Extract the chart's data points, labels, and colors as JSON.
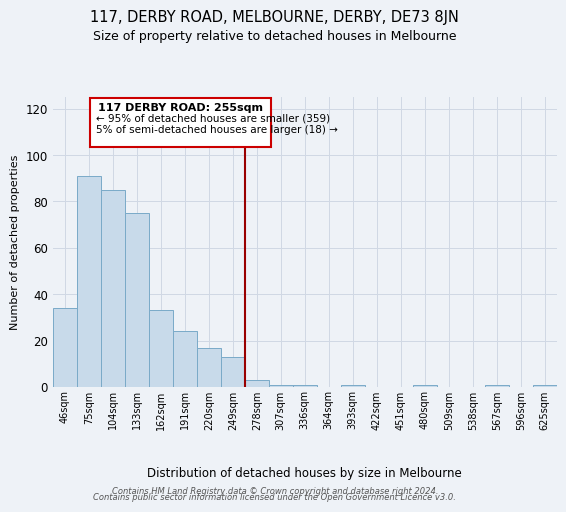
{
  "title": "117, DERBY ROAD, MELBOURNE, DERBY, DE73 8JN",
  "subtitle": "Size of property relative to detached houses in Melbourne",
  "xlabel": "Distribution of detached houses by size in Melbourne",
  "ylabel": "Number of detached properties",
  "bar_labels": [
    "46sqm",
    "75sqm",
    "104sqm",
    "133sqm",
    "162sqm",
    "191sqm",
    "220sqm",
    "249sqm",
    "278sqm",
    "307sqm",
    "336sqm",
    "364sqm",
    "393sqm",
    "422sqm",
    "451sqm",
    "480sqm",
    "509sqm",
    "538sqm",
    "567sqm",
    "596sqm",
    "625sqm"
  ],
  "bar_values": [
    34,
    91,
    85,
    75,
    33,
    24,
    17,
    13,
    3,
    1,
    1,
    0,
    1,
    0,
    0,
    1,
    0,
    0,
    1,
    0,
    1
  ],
  "bar_color": "#c8daea",
  "bar_edge_color": "#7aaac8",
  "vline_color": "#990000",
  "annotation_title": "117 DERBY ROAD: 255sqm",
  "annotation_line1": "← 95% of detached houses are smaller (359)",
  "annotation_line2": "5% of semi-detached houses are larger (18) →",
  "annotation_box_color": "#ffffff",
  "annotation_box_edge": "#cc0000",
  "ylim": [
    0,
    125
  ],
  "yticks": [
    0,
    20,
    40,
    60,
    80,
    100,
    120
  ],
  "footer1": "Contains HM Land Registry data © Crown copyright and database right 2024.",
  "footer2": "Contains public sector information licensed under the Open Government Licence v3.0.",
  "bg_color": "#eef2f7",
  "plot_bg_color": "#eef2f7",
  "grid_color": "#d0d8e4"
}
